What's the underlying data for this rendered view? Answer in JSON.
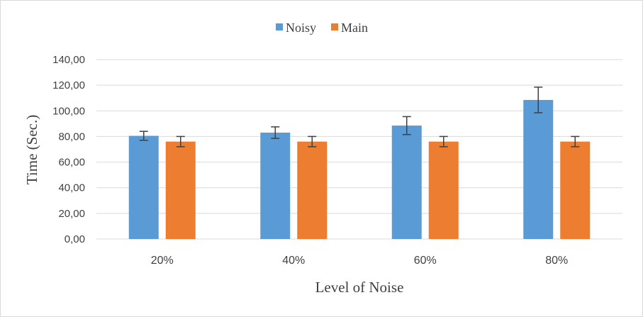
{
  "colors": {
    "noisy": "#5b9bd5",
    "main": "#ed7d31",
    "grid": "#d9d9d9",
    "error": "#404040"
  },
  "chart_data": {
    "type": "bar",
    "categories": [
      "20%",
      "40%",
      "60%",
      "80%"
    ],
    "series": [
      {
        "name": "Noisy",
        "values": [
          80.5,
          83.0,
          88.5,
          108.5
        ],
        "error": [
          3.5,
          4.5,
          7.0,
          10.0
        ]
      },
      {
        "name": "Main",
        "values": [
          76.0,
          76.0,
          76.0,
          76.0
        ],
        "error": [
          4.0,
          4.0,
          4.0,
          4.0
        ]
      }
    ],
    "xlabel": "Level of Noise",
    "ylabel": "Time (Sec.)",
    "ylim": [
      0,
      140
    ],
    "yticks": [
      "0,00",
      "20,00",
      "40,00",
      "60,00",
      "80,00",
      "100,00",
      "120,00",
      "140,00"
    ],
    "grid": true,
    "legend_position": "top-center"
  }
}
